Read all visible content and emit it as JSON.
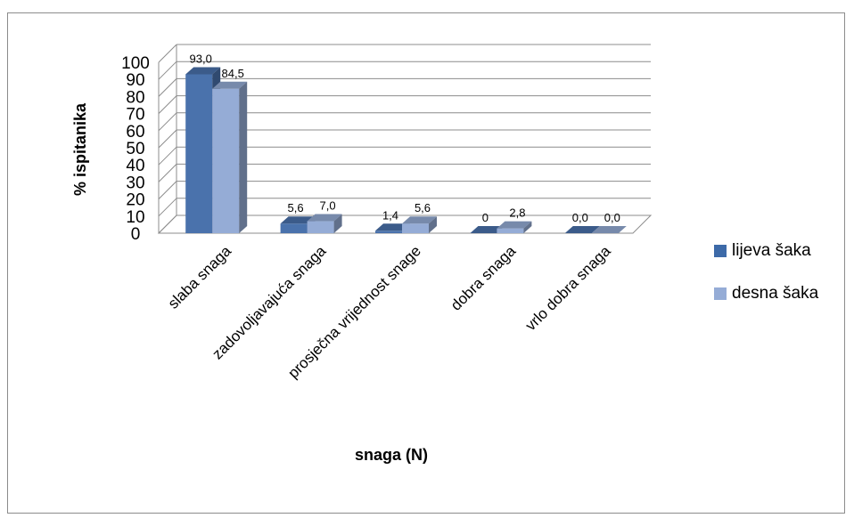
{
  "chart_data": {
    "type": "bar",
    "categories": [
      "slaba snaga",
      "zadovoljavajuća snaga",
      "prosječna vrijednost snage",
      "dobra snaga",
      "vrlo dobra snaga"
    ],
    "series": [
      {
        "name": "lijeva šaka",
        "values": [
          93.0,
          5.6,
          1.4,
          0,
          0.0
        ],
        "labels": [
          "93,0",
          "5,6",
          "1,4",
          "0",
          "0,0"
        ],
        "color": "#4a72ac"
      },
      {
        "name": "desna šaka",
        "values": [
          84.5,
          7.0,
          5.6,
          2.8,
          0.0
        ],
        "labels": [
          "84,5",
          "7,0",
          "5,6",
          "2,8",
          "0,0"
        ],
        "color": "#95acd6"
      }
    ],
    "yticks": [
      "0",
      "10",
      "20",
      "30",
      "40",
      "50",
      "60",
      "70",
      "80",
      "90",
      "100"
    ],
    "ylim": [
      0,
      100
    ],
    "xlabel": "snaga (N)",
    "ylabel": "% ispitanika",
    "legend_position": "right",
    "grid": true,
    "three_d": true
  }
}
